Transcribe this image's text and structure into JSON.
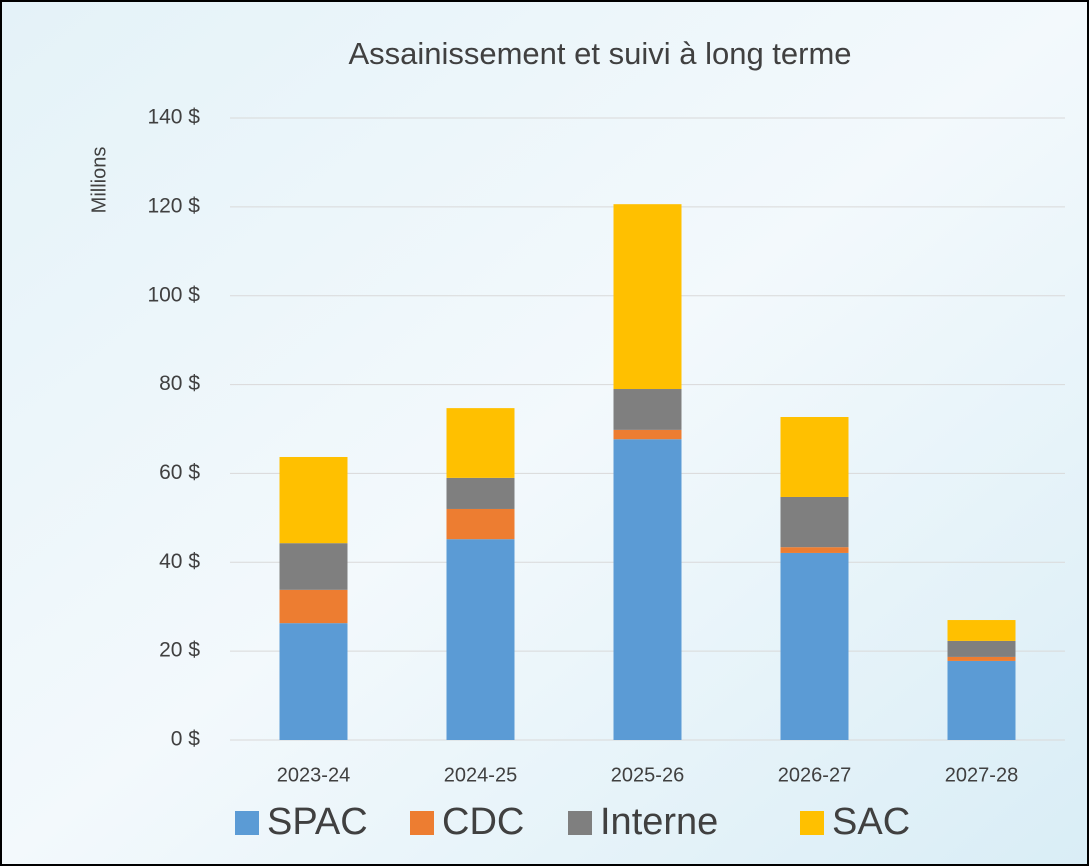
{
  "chart_data": {
    "type": "stacked-bar",
    "title": "Assainissement et suivi à long terme",
    "y_label": "Millions",
    "categories": [
      "2023-24",
      "2024-25",
      "2025-26",
      "2026-27",
      "2027-28"
    ],
    "series": [
      {
        "name": "SPAC",
        "color": "#5b9bd5",
        "values": [
          26.3,
          45.2,
          67.7,
          42.1,
          17.8
        ]
      },
      {
        "name": "CDC",
        "color": "#ed7d31",
        "values": [
          7.5,
          6.8,
          2.1,
          1.3,
          0.9
        ]
      },
      {
        "name": "Interne",
        "color": "#7f7f7f",
        "values": [
          10.5,
          7.0,
          9.2,
          11.3,
          3.6
        ]
      },
      {
        "name": "SAC",
        "color": "#ffc000",
        "values": [
          19.4,
          15.7,
          41.6,
          18.0,
          4.7
        ]
      }
    ],
    "ylim": [
      0,
      140
    ],
    "yticks": [
      {
        "value": 0,
        "label": "0 $"
      },
      {
        "value": 20,
        "label": "20 $"
      },
      {
        "value": 40,
        "label": "40 $"
      },
      {
        "value": 60,
        "label": "60 $"
      },
      {
        "value": 80,
        "label": "80 $"
      },
      {
        "value": 100,
        "label": "100 $"
      },
      {
        "value": 120,
        "label": "120 $"
      },
      {
        "value": 140,
        "label": "140 $"
      }
    ],
    "grid": true,
    "legend": "bottom"
  }
}
